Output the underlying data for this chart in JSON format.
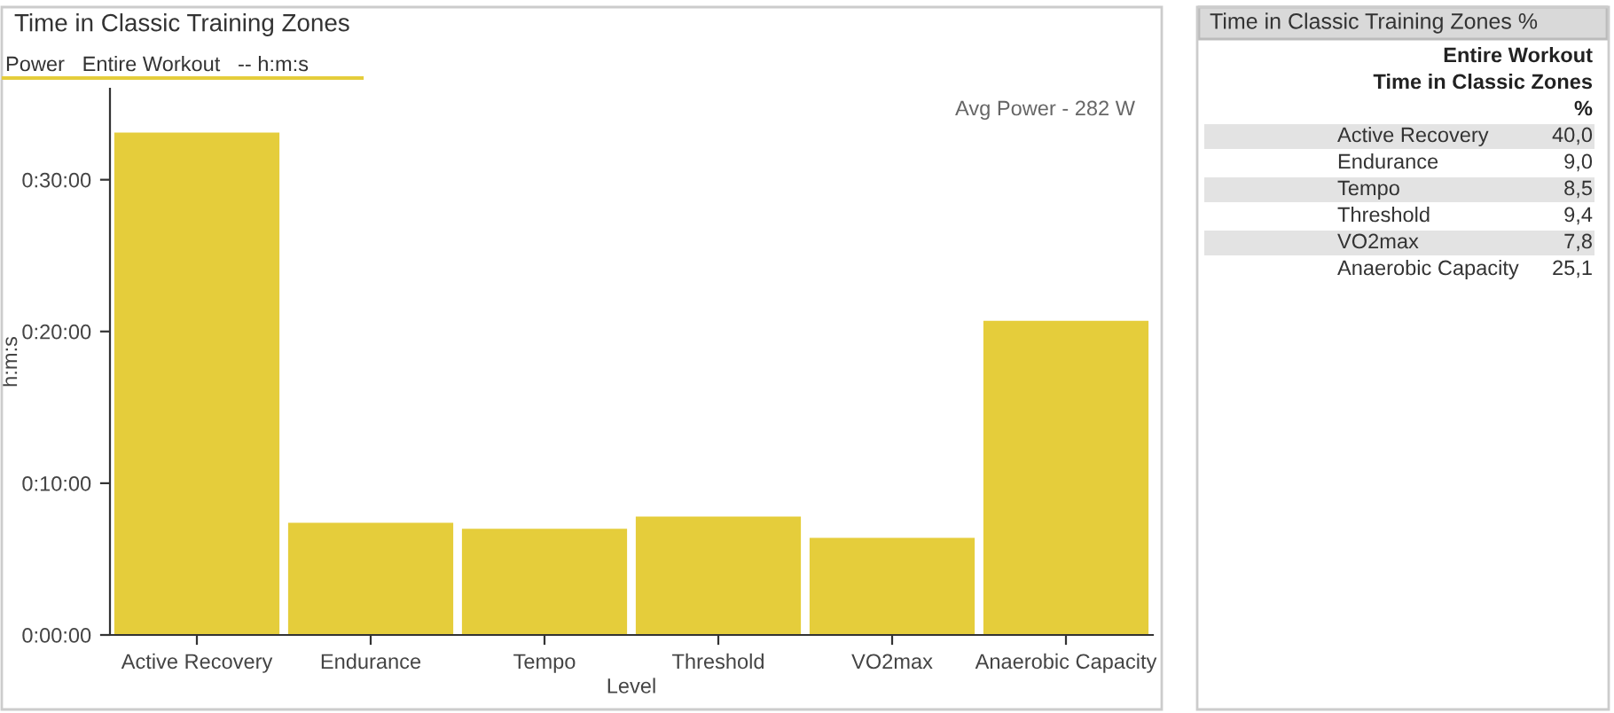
{
  "chart_data": [
    {
      "type": "bar",
      "title": "Time in Classic Training Zones",
      "subtitle": "Power   Entire Workout   -- h:m:s",
      "annotations": [
        "Avg Power - 282 W"
      ],
      "xlabel": "Level",
      "ylabel": "h:m:s",
      "categories": [
        "Active Recovery",
        "Endurance",
        "Tempo",
        "Threshold",
        "VO2max",
        "Anaerobic Capacity"
      ],
      "values": [
        33.1,
        7.4,
        7.0,
        7.8,
        6.4,
        20.7
      ],
      "color": "#e5cd3b",
      "ylim": [
        0,
        36
      ],
      "yticks": [
        {
          "value": 0,
          "label": "0:00:00"
        },
        {
          "value": 10,
          "label": "0:10:00"
        },
        {
          "value": 20,
          "label": "0:20:00"
        },
        {
          "value": 30,
          "label": "0:30:00"
        }
      ],
      "grid": false
    },
    {
      "type": "other",
      "title": "Time in Classic Training Zones %",
      "subtitle": "Entire Workout",
      "annotations": [
        "Time in Classic Zones",
        "%"
      ],
      "categories": [
        "Active Recovery",
        "Endurance",
        "Tempo",
        "Threshold",
        "VO2max",
        "Anaerobic Capacity"
      ],
      "values": [
        40.0,
        9.0,
        8.5,
        9.4,
        7.8,
        25.1
      ],
      "value_labels": [
        "40,0",
        "9,0",
        "8,5",
        "9,4",
        "7,8",
        "25,1"
      ]
    }
  ]
}
